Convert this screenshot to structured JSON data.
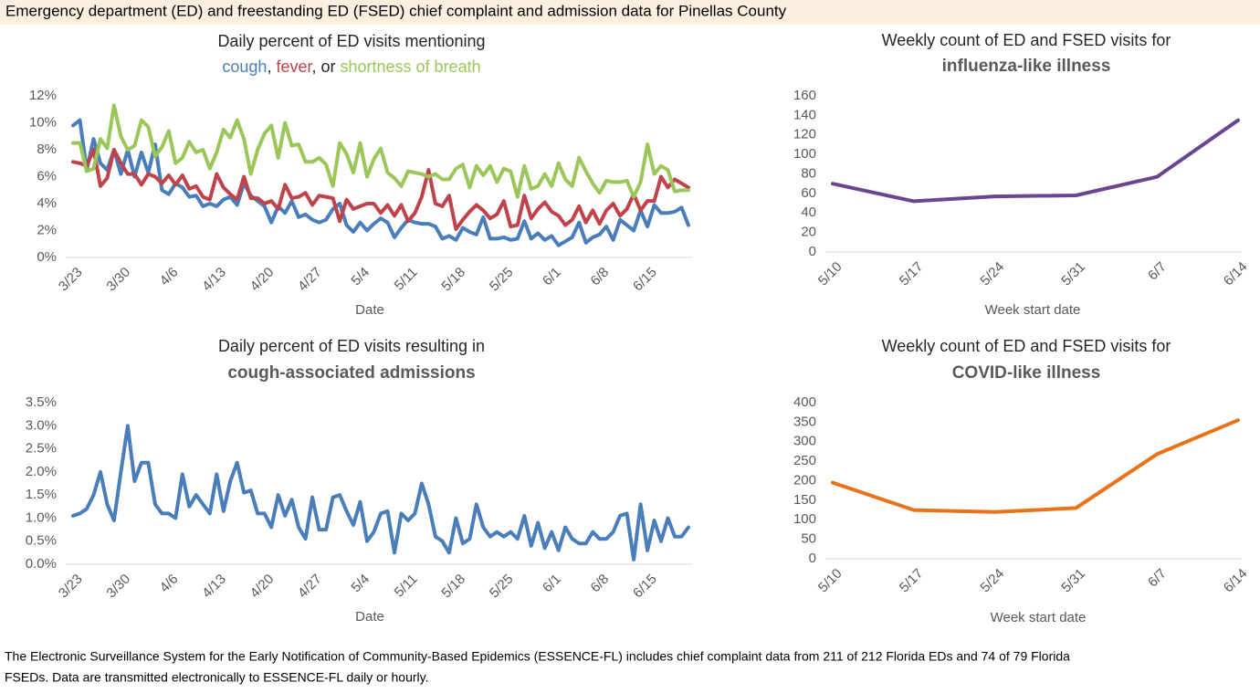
{
  "title": "Emergency department (ED) and freestanding ED (FSED) chief complaint and admission data for Pinellas County",
  "footnote": [
    "The Electronic Surveillance System for the Early Notification of Community-Based Epidemics (ESSENCE-FL) includes chief complaint data from 211 of 212 Florida EDs and 74 of 79 Florida",
    "FSEDs. Data are transmitted electronically to ESSENCE-FL daily or hourly."
  ],
  "chart_data": [
    {
      "type": "line",
      "title": "Daily percent of ED visits mentioning",
      "legend_separators": [
        ", ",
        ", or "
      ],
      "x_label": "Date",
      "categories": [
        "3/23",
        null,
        null,
        null,
        null,
        null,
        null,
        "3/30",
        null,
        null,
        null,
        null,
        null,
        null,
        "4/6",
        null,
        null,
        null,
        null,
        null,
        null,
        "4/13",
        null,
        null,
        null,
        null,
        null,
        null,
        "4/20",
        null,
        null,
        null,
        null,
        null,
        null,
        "4/27",
        null,
        null,
        null,
        null,
        null,
        null,
        "5/4",
        null,
        null,
        null,
        null,
        null,
        null,
        "5/11",
        null,
        null,
        null,
        null,
        null,
        null,
        "5/18",
        null,
        null,
        null,
        null,
        null,
        null,
        "5/25",
        null,
        null,
        null,
        null,
        null,
        null,
        "6/1",
        null,
        null,
        null,
        null,
        null,
        null,
        "6/8",
        null,
        null,
        null,
        null,
        null,
        null,
        "6/15",
        null,
        null,
        null,
        null,
        null,
        null
      ],
      "series": [
        {
          "name": "cough",
          "color": "#4a7ebb",
          "values": [
            9.8,
            10.2,
            6.5,
            8.8,
            7.0,
            6.5,
            8.0,
            6.2,
            8.0,
            6.0,
            7.8,
            6.3,
            8.4,
            5.0,
            4.7,
            5.5,
            5.2,
            4.5,
            4.6,
            3.8,
            4.0,
            3.8,
            4.3,
            4.5,
            3.9,
            5.5,
            4.6,
            4.2,
            3.8,
            2.6,
            3.8,
            3.3,
            4.2,
            3.0,
            3.2,
            2.8,
            2.6,
            2.8,
            3.6,
            4.0,
            2.4,
            1.9,
            2.6,
            2.0,
            2.5,
            2.9,
            2.6,
            1.5,
            2.2,
            2.8,
            2.6,
            2.5,
            2.5,
            2.3,
            1.4,
            1.6,
            1.3,
            2.2,
            1.9,
            1.7,
            3.0,
            1.4,
            1.4,
            1.5,
            1.3,
            1.4,
            2.7,
            1.4,
            1.8,
            1.3,
            1.6,
            0.9,
            1.2,
            1.5,
            2.6,
            1.1,
            1.5,
            1.7,
            2.3,
            1.3,
            2.8,
            2.4,
            2.0,
            3.5,
            2.3,
            3.9,
            3.3,
            3.3,
            3.4,
            3.7,
            2.4
          ]
        },
        {
          "name": "fever",
          "color": "#c0424a",
          "values": [
            7.1,
            7.0,
            6.8,
            8.0,
            5.3,
            5.9,
            8.0,
            7.0,
            6.2,
            6.2,
            5.4,
            6.2,
            6.0,
            5.5,
            6.1,
            5.4,
            6.1,
            5.1,
            5.3,
            4.5,
            4.3,
            6.2,
            5.2,
            4.7,
            4.3,
            6.0,
            4.4,
            4.4,
            4.0,
            4.2,
            3.6,
            5.4,
            4.4,
            4.5,
            4.8,
            3.9,
            4.6,
            4.5,
            4.4,
            2.7,
            4.3,
            3.6,
            3.8,
            4.0,
            4.0,
            3.3,
            3.9,
            3.1,
            3.9,
            2.7,
            3.3,
            4.5,
            6.5,
            4.0,
            3.8,
            4.6,
            2.1,
            2.8,
            3.4,
            3.9,
            3.5,
            2.9,
            3.2,
            4.2,
            2.3,
            2.4,
            4.6,
            2.9,
            3.6,
            4.1,
            3.4,
            3.1,
            2.4,
            2.8,
            3.8,
            2.6,
            3.5,
            2.5,
            3.5,
            4.0,
            3.1,
            3.6,
            4.7,
            3.5,
            4.2,
            4.2,
            6.0,
            5.2,
            5.8,
            5.5,
            5.2
          ]
        },
        {
          "name": "shortness of breath",
          "color": "#9bc75a",
          "values": [
            8.5,
            8.5,
            6.4,
            6.6,
            8.8,
            8.1,
            11.3,
            9.0,
            8.0,
            8.3,
            10.2,
            9.7,
            7.5,
            8.2,
            9.4,
            7.0,
            7.4,
            8.6,
            7.8,
            8.0,
            6.6,
            7.8,
            9.5,
            8.9,
            10.2,
            8.8,
            6.2,
            8.0,
            9.2,
            9.8,
            7.4,
            10.0,
            8.3,
            8.4,
            7.1,
            7.1,
            7.4,
            6.9,
            5.3,
            8.5,
            7.7,
            6.3,
            8.5,
            6.0,
            7.3,
            8.1,
            6.3,
            5.9,
            5.3,
            6.4,
            6.3,
            6.2,
            6.0,
            6.2,
            5.8,
            5.8,
            6.6,
            6.9,
            5.2,
            6.8,
            6.1,
            6.8,
            5.6,
            6.6,
            6.4,
            4.5,
            6.8,
            5.1,
            5.3,
            6.2,
            5.3,
            7.0,
            5.8,
            5.3,
            7.4,
            6.4,
            5.5,
            4.8,
            5.7,
            5.6,
            5.6,
            5.7,
            4.5,
            5.6,
            8.4,
            6.2,
            6.8,
            6.5,
            4.9,
            5.0,
            5.0
          ]
        }
      ],
      "ylim": [
        0,
        12
      ],
      "yticks": [
        {
          "value": 0,
          "label": "0%"
        },
        {
          "value": 2,
          "label": "2%"
        },
        {
          "value": 4,
          "label": "4%"
        },
        {
          "value": 6,
          "label": "6%"
        },
        {
          "value": 8,
          "label": "8%"
        },
        {
          "value": 10,
          "label": "10%"
        },
        {
          "value": 12,
          "label": "12%"
        }
      ],
      "grid": false
    },
    {
      "type": "line",
      "title": "Weekly count of ED and FSED visits for",
      "subtitle": "influenza-like illness",
      "x_label": "Week start date",
      "categories": [
        "5/10",
        "5/17",
        "5/24",
        "5/31",
        "6/7",
        "6/14"
      ],
      "values": [
        70,
        52,
        57,
        58,
        77,
        135
      ],
      "color": "#6b4590",
      "ylim": [
        0,
        160
      ],
      "yticks": [
        0,
        20,
        40,
        60,
        80,
        100,
        120,
        140,
        160
      ],
      "grid": false
    },
    {
      "type": "line",
      "title": "Daily percent of ED visits resulting in",
      "subtitle": "cough-associated admissions",
      "x_label": "Date",
      "categories": [
        "3/23",
        null,
        null,
        null,
        null,
        null,
        null,
        "3/30",
        null,
        null,
        null,
        null,
        null,
        null,
        "4/6",
        null,
        null,
        null,
        null,
        null,
        null,
        "4/13",
        null,
        null,
        null,
        null,
        null,
        null,
        "4/20",
        null,
        null,
        null,
        null,
        null,
        null,
        "4/27",
        null,
        null,
        null,
        null,
        null,
        null,
        "5/4",
        null,
        null,
        null,
        null,
        null,
        null,
        "5/11",
        null,
        null,
        null,
        null,
        null,
        null,
        "5/18",
        null,
        null,
        null,
        null,
        null,
        null,
        "5/25",
        null,
        null,
        null,
        null,
        null,
        null,
        "6/1",
        null,
        null,
        null,
        null,
        null,
        null,
        "6/8",
        null,
        null,
        null,
        null,
        null,
        null,
        "6/15",
        null,
        null,
        null,
        null,
        null,
        null
      ],
      "values": [
        1.05,
        1.1,
        1.2,
        1.5,
        2.0,
        1.3,
        0.95,
        2.0,
        3.0,
        1.8,
        2.2,
        2.2,
        1.3,
        1.1,
        1.1,
        1.0,
        1.95,
        1.25,
        1.5,
        1.3,
        1.1,
        1.95,
        1.15,
        1.8,
        2.2,
        1.55,
        1.6,
        1.1,
        1.1,
        0.8,
        1.5,
        1.05,
        1.4,
        0.8,
        0.55,
        1.45,
        0.75,
        0.75,
        1.45,
        1.5,
        1.15,
        0.85,
        1.35,
        0.5,
        0.7,
        1.1,
        1.15,
        0.25,
        1.1,
        0.95,
        1.1,
        1.75,
        1.3,
        0.6,
        0.5,
        0.25,
        1.0,
        0.45,
        0.55,
        1.3,
        0.8,
        0.6,
        0.7,
        0.6,
        0.7,
        0.55,
        1.05,
        0.4,
        0.9,
        0.35,
        0.7,
        0.3,
        0.8,
        0.55,
        0.45,
        0.45,
        0.7,
        0.55,
        0.55,
        0.7,
        1.05,
        1.1,
        0.1,
        1.3,
        0.3,
        0.95,
        0.5,
        1.0,
        0.6,
        0.6,
        0.8
      ],
      "color": "#4a7ebb",
      "ylim": [
        0,
        3.5
      ],
      "yticks": [
        {
          "value": 0,
          "label": "0.0%"
        },
        {
          "value": 0.5,
          "label": "0.5%"
        },
        {
          "value": 1,
          "label": "1.0%"
        },
        {
          "value": 1.5,
          "label": "1.5%"
        },
        {
          "value": 2,
          "label": "2.0%"
        },
        {
          "value": 2.5,
          "label": "2.5%"
        },
        {
          "value": 3,
          "label": "3.0%"
        },
        {
          "value": 3.5,
          "label": "3.5%"
        }
      ],
      "grid": false
    },
    {
      "type": "line",
      "title": "Weekly count of ED and FSED visits for",
      "subtitle": "COVID-like illness",
      "x_label": "Week start date",
      "categories": [
        "5/10",
        "5/17",
        "5/24",
        "5/31",
        "6/7",
        "6/14"
      ],
      "values": [
        195,
        125,
        120,
        130,
        268,
        355
      ],
      "color": "#e8731a",
      "ylim": [
        0,
        400
      ],
      "yticks": [
        0,
        50,
        100,
        150,
        200,
        250,
        300,
        350,
        400
      ],
      "grid": false
    }
  ]
}
